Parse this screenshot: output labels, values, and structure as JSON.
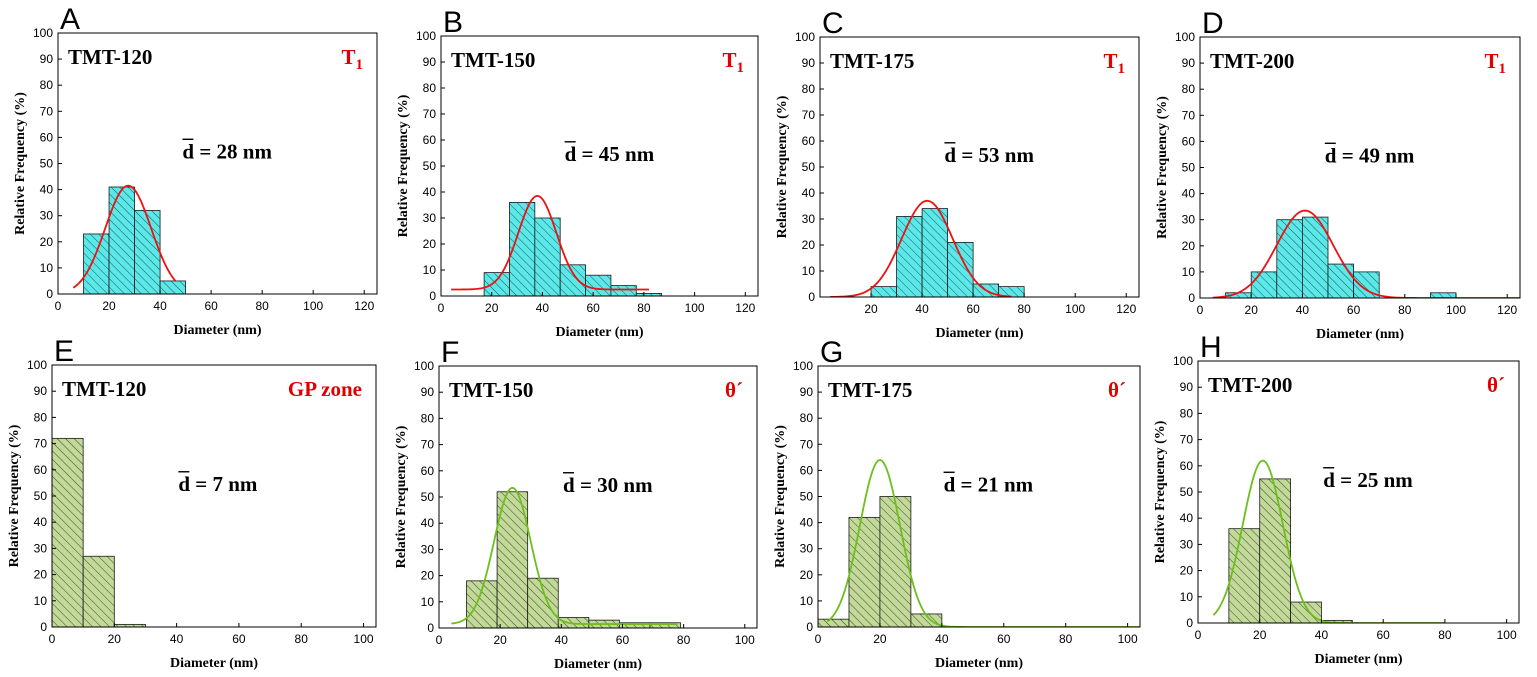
{
  "colors": {
    "t1_fill": "#5ce8e8",
    "t1_fit": "#ee1111",
    "theta_fill": "#c2d99a",
    "theta_fit": "#6dbf1b",
    "phase_text": "#e00000"
  },
  "chart_data": [
    {
      "letter": "A",
      "type": "bar",
      "sample": "TMT-120",
      "phase": "T",
      "phase_sub": "1",
      "mean_label": "d = 28 nm",
      "xlabel": "Diameter (nm)",
      "ylabel": "Relative Frequency (%)",
      "xlim": [
        0,
        125
      ],
      "ylim": [
        0,
        100
      ],
      "xticks": [
        0,
        20,
        40,
        60,
        80,
        100,
        120
      ],
      "yticks": [
        0,
        10,
        20,
        30,
        40,
        50,
        60,
        70,
        80,
        90,
        100
      ],
      "bin_width": 10,
      "bin_starts": [
        10,
        20,
        30,
        40
      ],
      "values": [
        23,
        41,
        32,
        5
      ],
      "fit": {
        "type": "gaussian",
        "mean": 27.5,
        "sigma": 9,
        "amplitude": 41.5,
        "x_range": [
          6,
          46
        ]
      }
    },
    {
      "letter": "B",
      "type": "bar",
      "sample": "TMT-150",
      "phase": "T",
      "phase_sub": "1",
      "mean_label": "d = 45 nm",
      "xlabel": "Diameter (nm)",
      "ylabel": "Relative Frequency (%)",
      "xlim": [
        0,
        125
      ],
      "ylim": [
        0,
        100
      ],
      "xticks": [
        0,
        20,
        40,
        60,
        80,
        100,
        120
      ],
      "yticks": [
        0,
        10,
        20,
        30,
        40,
        50,
        60,
        70,
        80,
        90,
        100
      ],
      "bin_width": 10,
      "bin_starts": [
        17,
        27,
        37,
        47,
        57,
        67,
        77
      ],
      "values": [
        9,
        36,
        30,
        12,
        8,
        4,
        1
      ],
      "fit": {
        "type": "gaussian",
        "mean": 38,
        "sigma": 7.5,
        "amplitude": 36,
        "baseline": 2.5,
        "x_range": [
          4,
          82
        ]
      }
    },
    {
      "letter": "C",
      "type": "bar",
      "sample": "TMT-175",
      "phase": "T",
      "phase_sub": "1",
      "mean_label": "d = 53 nm",
      "xlabel": "Diameter (nm)",
      "ylabel": "Relative Frequency (%)",
      "xlim": [
        0,
        125
      ],
      "ylim": [
        0,
        100
      ],
      "xticks": [
        20,
        40,
        60,
        80,
        100,
        120
      ],
      "yticks": [
        0,
        10,
        20,
        30,
        40,
        50,
        60,
        70,
        80,
        90,
        100
      ],
      "bin_width": 10,
      "bin_starts": [
        20,
        30,
        40,
        50,
        60,
        70
      ],
      "values": [
        4,
        31,
        34,
        21,
        5,
        4
      ],
      "fit": {
        "type": "gaussian",
        "mean": 42,
        "sigma": 10,
        "amplitude": 37,
        "x_range": [
          4,
          75
        ]
      }
    },
    {
      "letter": "D",
      "type": "bar",
      "sample": "TMT-200",
      "phase": "T",
      "phase_sub": "1",
      "mean_label": "d = 49 nm",
      "xlabel": "Diameter (nm)",
      "ylabel": "Relative Frequency (%)",
      "xlim": [
        0,
        125
      ],
      "ylim": [
        0,
        100
      ],
      "xticks": [
        0,
        20,
        40,
        60,
        80,
        100,
        120
      ],
      "yticks": [
        0,
        10,
        20,
        30,
        40,
        50,
        60,
        70,
        80,
        90,
        100
      ],
      "bin_width": 10,
      "bin_starts": [
        10,
        20,
        30,
        40,
        50,
        60,
        90
      ],
      "values": [
        2,
        10,
        30,
        31,
        13,
        10,
        2
      ],
      "fit": {
        "type": "gaussian",
        "mean": 41,
        "sigma": 11,
        "amplitude": 33.5,
        "x_range": [
          5,
          125
        ]
      }
    },
    {
      "letter": "E",
      "type": "bar",
      "sample": "TMT-120",
      "phase": "GP zone",
      "phase_sub": "",
      "mean_label": "d = 7 nm",
      "xlabel": "Diameter (nm)",
      "ylabel": "Relative Frequency (%)",
      "xlim": [
        0,
        104
      ],
      "ylim": [
        0,
        100
      ],
      "xticks": [
        0,
        20,
        40,
        60,
        80,
        100
      ],
      "yticks": [
        0,
        10,
        20,
        30,
        40,
        50,
        60,
        70,
        80,
        90,
        100
      ],
      "bin_width": 10,
      "bin_starts": [
        0,
        10,
        20
      ],
      "values": [
        72,
        27,
        1
      ]
    },
    {
      "letter": "F",
      "type": "bar",
      "sample": "TMT-150",
      "phase": "θ´",
      "phase_sub": "",
      "mean_label": "d = 30 nm",
      "xlabel": "Diameter (nm)",
      "ylabel": "Relative Frequency (%)",
      "xlim": [
        0,
        104
      ],
      "ylim": [
        0,
        100
      ],
      "xticks": [
        0,
        20,
        40,
        60,
        80,
        100
      ],
      "yticks": [
        0,
        10,
        20,
        30,
        40,
        50,
        60,
        70,
        80,
        90,
        100
      ],
      "bin_width": 10,
      "bin_starts": [
        9,
        19,
        29,
        39,
        49,
        59,
        69
      ],
      "values": [
        18,
        52,
        19,
        4,
        3,
        2,
        2
      ],
      "fit": {
        "type": "gaussian",
        "mean": 24,
        "sigma": 6,
        "amplitude": 52,
        "baseline": 1.5,
        "x_range": [
          4,
          78
        ]
      }
    },
    {
      "letter": "G",
      "type": "bar",
      "sample": "TMT-175",
      "phase": "θ´",
      "phase_sub": "",
      "mean_label": "d = 21 nm",
      "xlabel": "Diameter (nm)",
      "ylabel": "Relative Frequency (%)",
      "xlim": [
        0,
        104
      ],
      "ylim": [
        0,
        100
      ],
      "xticks": [
        0,
        20,
        40,
        60,
        80,
        100
      ],
      "yticks": [
        0,
        10,
        20,
        30,
        40,
        50,
        60,
        70,
        80,
        90,
        100
      ],
      "bin_width": 10,
      "bin_starts": [
        0,
        10,
        20,
        30
      ],
      "values": [
        3,
        42,
        50,
        5
      ],
      "fit": {
        "type": "gaussian",
        "mean": 20,
        "sigma": 6.5,
        "amplitude": 64,
        "x_range": [
          3,
          104
        ]
      }
    },
    {
      "letter": "H",
      "type": "bar",
      "sample": "TMT-200",
      "phase": "θ´",
      "phase_sub": "",
      "mean_label": "d = 25 nm",
      "xlabel": "Diameter (nm)",
      "ylabel": "Relative Frequency (%)",
      "xlim": [
        0,
        104
      ],
      "ylim": [
        0,
        100
      ],
      "xticks": [
        0,
        20,
        40,
        60,
        80,
        100
      ],
      "yticks": [
        0,
        10,
        20,
        30,
        40,
        50,
        60,
        70,
        80,
        90,
        100
      ],
      "bin_width": 10,
      "bin_starts": [
        10,
        20,
        30,
        40
      ],
      "values": [
        36,
        55,
        8,
        1
      ],
      "fit": {
        "type": "gaussian",
        "mean": 21,
        "sigma": 6.5,
        "amplitude": 62,
        "x_range": [
          5,
          80
        ]
      }
    }
  ]
}
